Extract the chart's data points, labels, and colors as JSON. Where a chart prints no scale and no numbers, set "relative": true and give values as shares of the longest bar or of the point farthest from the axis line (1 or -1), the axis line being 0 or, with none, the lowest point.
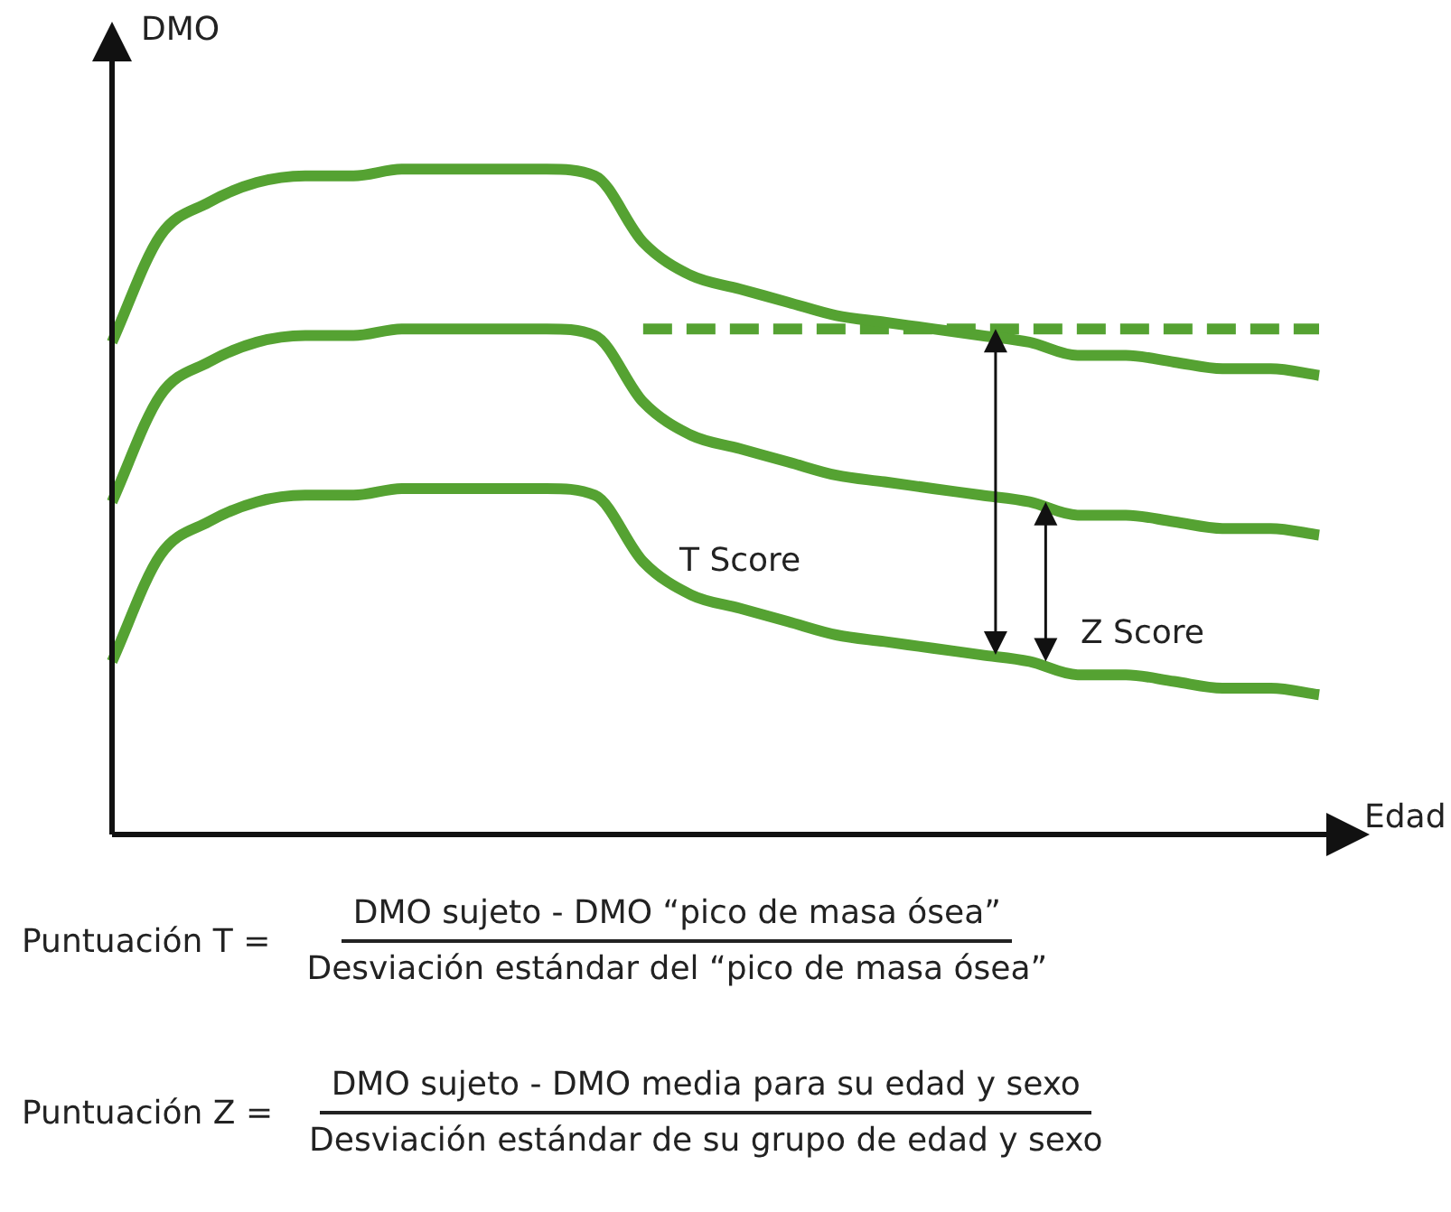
{
  "chart_data": {
    "type": "line",
    "relative": true,
    "xlabel": "Edad",
    "ylabel": "DMO",
    "legend": false,
    "marker": "none",
    "tick_labels": false,
    "categories": [
      null,
      null,
      null,
      null,
      null,
      null,
      null,
      null,
      null,
      null,
      null,
      null,
      null,
      null,
      null,
      null,
      null,
      null,
      null,
      null,
      null,
      null,
      null,
      null,
      null,
      null
    ],
    "series": [
      {
        "color": "#55a232",
        "line_style": "solid",
        "values": [
          0.74,
          0.9,
          0.95,
          0.98,
          0.99,
          0.99,
          1.0,
          1.0,
          1.0,
          1.0,
          0.99,
          0.89,
          0.84,
          0.82,
          0.8,
          0.78,
          0.77,
          0.76,
          0.75,
          0.74,
          0.72,
          0.72,
          0.71,
          0.7,
          0.7,
          0.69
        ]
      },
      {
        "color": "#55a232",
        "line_style": "solid",
        "values": [
          0.5,
          0.66,
          0.71,
          0.74,
          0.75,
          0.75,
          0.76,
          0.76,
          0.76,
          0.76,
          0.75,
          0.65,
          0.6,
          0.58,
          0.56,
          0.54,
          0.53,
          0.52,
          0.51,
          0.5,
          0.48,
          0.48,
          0.47,
          0.46,
          0.46,
          0.45
        ]
      },
      {
        "color": "#55a232",
        "line_style": "solid",
        "values": [
          0.26,
          0.42,
          0.47,
          0.5,
          0.51,
          0.51,
          0.52,
          0.52,
          0.52,
          0.52,
          0.51,
          0.41,
          0.36,
          0.34,
          0.32,
          0.3,
          0.29,
          0.28,
          0.27,
          0.26,
          0.24,
          0.24,
          0.23,
          0.22,
          0.22,
          0.21
        ]
      },
      {
        "color": "#55a232",
        "line_style": "dashed",
        "values": [
          null,
          null,
          null,
          null,
          null,
          null,
          null,
          null,
          null,
          null,
          null,
          0.76,
          0.76,
          0.76,
          0.76,
          0.76,
          0.76,
          0.76,
          0.76,
          0.76,
          0.76,
          0.76,
          0.76,
          0.76,
          0.76,
          0.76
        ]
      }
    ],
    "annotations": [
      "T Score",
      "Z Score",
      "Puntuación T =",
      "DMO sujeto - DMO “pico de masa ósea”",
      "Desviación estándar del “pico de masa ósea”",
      "Puntuación Z =",
      "DMO sujeto - DMO media para su edad y sexo",
      "Desviación estándar de su grupo de edad y sexo"
    ]
  }
}
